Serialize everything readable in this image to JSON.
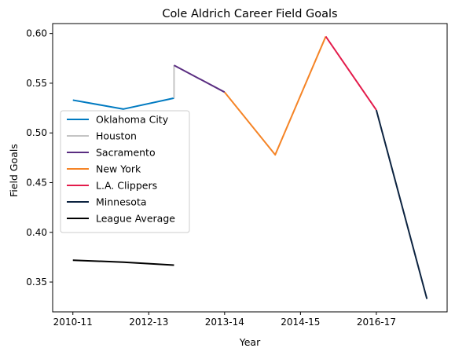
{
  "chart_data": {
    "type": "line",
    "title": "Cole Aldrich Career Field Goals",
    "xlabel": "Year",
    "ylabel": "Field Goals",
    "x_ticks": [
      "2010-11",
      "2012-13",
      "2013-14",
      "2014-15",
      "2016-17"
    ],
    "y_ticks": [
      "0.35",
      "0.40",
      "0.45",
      "0.50",
      "0.55",
      "0.60"
    ],
    "xlim": [
      -0.4,
      7.4
    ],
    "ylim": [
      0.32,
      0.61
    ],
    "grid": false,
    "legend_position": "center-left",
    "series": [
      {
        "name": "Oklahoma City",
        "color": "#007ac1",
        "points": [
          [
            0,
            0.533
          ],
          [
            1,
            0.524
          ],
          [
            2,
            0.535
          ]
        ]
      },
      {
        "name": "Houston",
        "color": "#c4c4c4",
        "points": [
          [
            2,
            0.535
          ],
          [
            2,
            0.568
          ]
        ]
      },
      {
        "name": "Sacramento",
        "color": "#5a2d81",
        "points": [
          [
            2,
            0.568
          ],
          [
            3,
            0.541
          ]
        ]
      },
      {
        "name": "New York",
        "color": "#f58426",
        "points": [
          [
            3,
            0.541
          ],
          [
            4,
            0.478
          ],
          [
            5,
            0.597
          ]
        ]
      },
      {
        "name": "L.A. Clippers",
        "color": "#e31b4b",
        "points": [
          [
            5,
            0.597
          ],
          [
            6,
            0.523
          ]
        ]
      },
      {
        "name": "Minnesota",
        "color": "#0c2340",
        "points": [
          [
            6,
            0.523
          ],
          [
            7,
            0.333
          ]
        ]
      },
      {
        "name": "League Average",
        "color": "#000000",
        "points": [
          [
            0,
            0.372
          ],
          [
            1,
            0.37
          ],
          [
            2,
            0.367
          ]
        ]
      }
    ]
  }
}
